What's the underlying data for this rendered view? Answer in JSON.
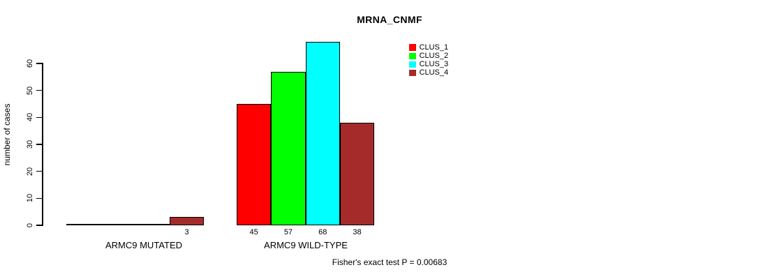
{
  "figure": {
    "background": "#FFFFFF",
    "text_color": "#000000"
  },
  "chart_data": {
    "type": "bar",
    "title": "MRNA_CNMF",
    "xlabel": "",
    "ylabel": "number of cases",
    "ylim": [
      0,
      60
    ],
    "yticks": [
      0,
      10,
      20,
      30,
      40,
      50,
      60
    ],
    "grid": false,
    "legend_position": "top-right",
    "categories": [
      "ARMC9 MUTATED",
      "ARMC9 WILD-TYPE"
    ],
    "series": [
      {
        "name": "CLUS_1",
        "color": "#FF0000",
        "values": [
          0,
          45
        ]
      },
      {
        "name": "CLUS_2",
        "color": "#00FF00",
        "values": [
          0,
          57
        ]
      },
      {
        "name": "CLUS_3",
        "color": "#00FFFF",
        "values": [
          0,
          68
        ]
      },
      {
        "name": "CLUS_4",
        "color": "#A52A2A",
        "values": [
          3,
          38
        ]
      }
    ],
    "bar_value_labels": {
      "visible": true,
      "hide_zero": true
    },
    "annotation": "Fisher's exact test P = 0.00683"
  }
}
